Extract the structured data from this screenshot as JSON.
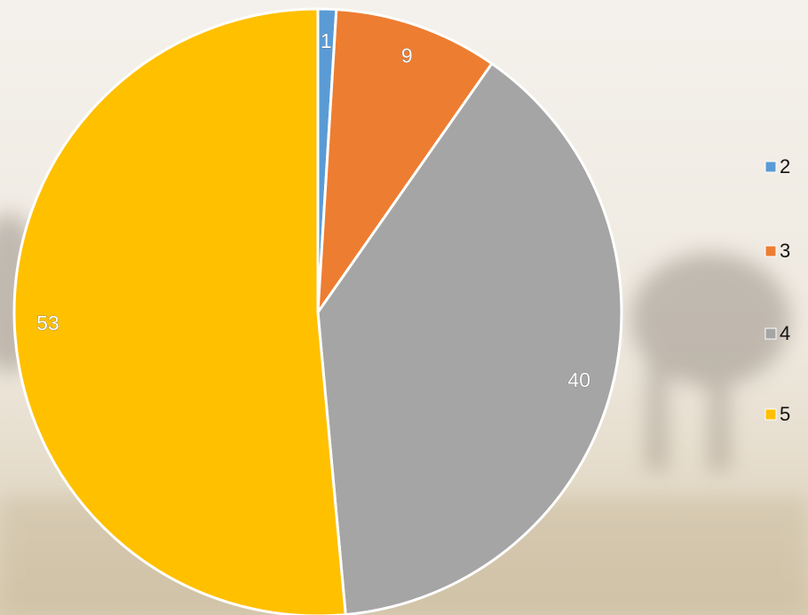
{
  "chart_data": {
    "type": "pie",
    "categories": [
      "2",
      "3",
      "4",
      "5"
    ],
    "values": [
      1,
      9,
      40,
      53
    ],
    "colors": [
      "#5b9bd5",
      "#ed7d31",
      "#a5a5a5",
      "#ffc000"
    ],
    "legend": "right"
  }
}
